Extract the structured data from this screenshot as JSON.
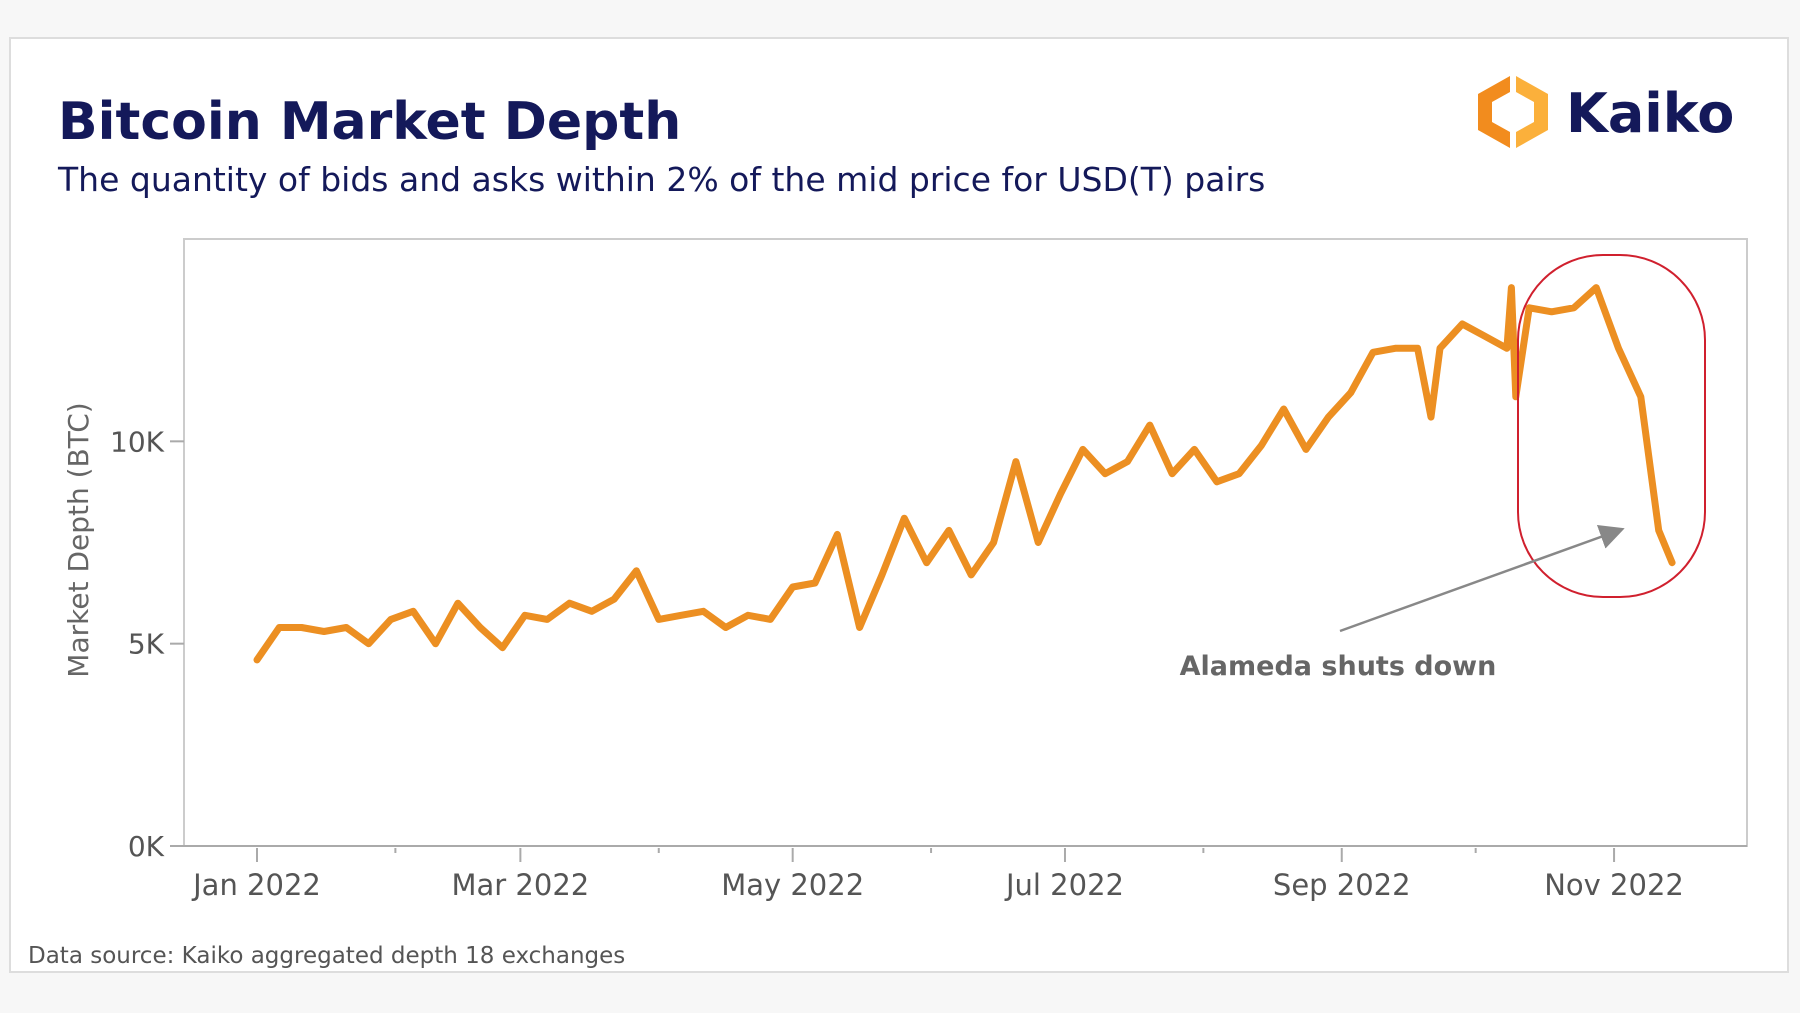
{
  "header": {
    "title": "Bitcoin Market Depth",
    "subtitle": "The quantity of bids and asks within 2% of the mid price for USD(T) pairs",
    "logo_text": "Kaiko"
  },
  "footer": {
    "source": "Data source: Kaiko aggregated depth 18 exchanges"
  },
  "colors": {
    "line": "#ec8f22",
    "title": "#14195a",
    "highlight": "#d0202e",
    "annotation": "#888888",
    "logo_orange": "#f7941d",
    "logo_navy": "#14195a"
  },
  "chart_data": {
    "type": "line",
    "title": "Bitcoin Market Depth",
    "ylabel": "Market Depth (BTC)",
    "xlabel": "",
    "ylim": [
      0,
      15000
    ],
    "yticks": [
      {
        "value": 0,
        "label": "0K"
      },
      {
        "value": 5000,
        "label": "5K"
      },
      {
        "value": 10000,
        "label": "10K"
      }
    ],
    "xticks": [
      {
        "date": "2022-01-01",
        "label": "Jan 2022"
      },
      {
        "date": "2022-03-01",
        "label": "Mar 2022"
      },
      {
        "date": "2022-05-01",
        "label": "May 2022"
      },
      {
        "date": "2022-07-01",
        "label": "Jul 2022"
      },
      {
        "date": "2022-09-01",
        "label": "Sep 2022"
      },
      {
        "date": "2022-11-01",
        "label": "Nov 2022"
      }
    ],
    "minor_xticks": [
      "2022-02-01",
      "2022-04-01",
      "2022-06-01",
      "2022-08-01",
      "2022-10-01"
    ],
    "grid": false,
    "series": [
      {
        "x": [
          "2022-01-01",
          "2022-01-06",
          "2022-01-11",
          "2022-01-16",
          "2022-01-21",
          "2022-01-26",
          "2022-01-31",
          "2022-02-05",
          "2022-02-10",
          "2022-02-15",
          "2022-02-20",
          "2022-02-25",
          "2022-03-02",
          "2022-03-07",
          "2022-03-12",
          "2022-03-17",
          "2022-03-22",
          "2022-03-27",
          "2022-04-01",
          "2022-04-06",
          "2022-04-11",
          "2022-04-16",
          "2022-04-21",
          "2022-04-26",
          "2022-05-01",
          "2022-05-06",
          "2022-05-11",
          "2022-05-16",
          "2022-05-21",
          "2022-05-26",
          "2022-05-31",
          "2022-06-05",
          "2022-06-10",
          "2022-06-15",
          "2022-06-20",
          "2022-06-25",
          "2022-06-30",
          "2022-07-05",
          "2022-07-10",
          "2022-07-15",
          "2022-07-20",
          "2022-07-25",
          "2022-07-30",
          "2022-08-04",
          "2022-08-09",
          "2022-08-14",
          "2022-08-19",
          "2022-08-24",
          "2022-08-29",
          "2022-09-03",
          "2022-09-08",
          "2022-09-13",
          "2022-09-18",
          "2022-09-21",
          "2022-09-23",
          "2022-09-28",
          "2022-10-03",
          "2022-10-08",
          "2022-10-09",
          "2022-10-10",
          "2022-10-13",
          "2022-10-18",
          "2022-10-23",
          "2022-10-28",
          "2022-11-02",
          "2022-11-07",
          "2022-11-11",
          "2022-11-14"
        ],
        "y": [
          4600,
          5400,
          5400,
          5300,
          5400,
          5000,
          5600,
          5800,
          5000,
          6000,
          5400,
          4900,
          5700,
          5600,
          6000,
          5800,
          6100,
          6800,
          5600,
          5700,
          5800,
          5400,
          5700,
          5600,
          6400,
          6500,
          7700,
          5400,
          6700,
          8100,
          7000,
          7800,
          6700,
          7500,
          9500,
          7500,
          8700,
          9800,
          9200,
          9500,
          10400,
          9200,
          9800,
          9000,
          9200,
          9900,
          10800,
          9800,
          10600,
          11200,
          12200,
          12300,
          12300,
          10600,
          12300,
          12900,
          12600,
          12300,
          13800,
          11100,
          13300,
          13200,
          13300,
          13800,
          12300,
          11100,
          7800,
          7000
        ]
      }
    ],
    "annotations": [
      {
        "text": "Alameda shuts down",
        "target_date": "2022-11-04",
        "arrow": true,
        "highlight": "rounded box around Oct–Nov 2022"
      }
    ]
  }
}
